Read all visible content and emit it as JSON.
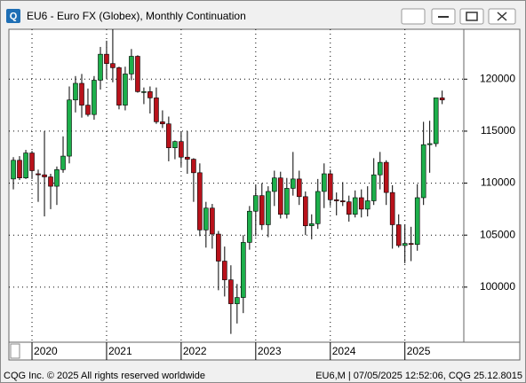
{
  "chart_data": {
    "type": "candlestick",
    "title": "EU6 - Euro FX (Globex), Monthly Continuation",
    "footer_left": "CQG Inc. © 2025 All rights reserved worldwide",
    "footer_right": "EU6,M | 07/05/2025 12:52:06, CQG 25.12.8015",
    "x": [
      2019.75,
      2019.833,
      2019.917,
      2020.0,
      2020.083,
      2020.167,
      2020.25,
      2020.333,
      2020.417,
      2020.5,
      2020.583,
      2020.667,
      2020.75,
      2020.833,
      2020.917,
      2021.0,
      2021.083,
      2021.167,
      2021.25,
      2021.333,
      2021.417,
      2021.5,
      2021.583,
      2021.667,
      2021.75,
      2021.833,
      2021.917,
      2022.0,
      2022.083,
      2022.167,
      2022.25,
      2022.333,
      2022.417,
      2022.5,
      2022.583,
      2022.667,
      2022.75,
      2022.833,
      2022.917,
      2023.0,
      2023.083,
      2023.167,
      2023.25,
      2023.333,
      2023.417,
      2023.5,
      2023.583,
      2023.667,
      2023.75,
      2023.833,
      2023.917,
      2024.0,
      2024.083,
      2024.167,
      2024.25,
      2024.333,
      2024.417,
      2024.5,
      2024.583,
      2024.667,
      2024.75,
      2024.833,
      2024.917,
      2025.0,
      2025.083,
      2025.167,
      2025.25,
      2025.333,
      2025.417,
      2025.5
    ],
    "open": [
      110400,
      112200,
      110500,
      112900,
      110900,
      110800,
      110600,
      109700,
      111300,
      112600,
      118000,
      119600,
      117500,
      116600,
      119900,
      122400,
      121500,
      121100,
      117500,
      120500,
      122200,
      118800,
      118800,
      118200,
      115900,
      115700,
      113400,
      114000,
      112500,
      112300,
      111000,
      105500,
      107600,
      105100,
      102500,
      100700,
      98400,
      99000,
      104300,
      107300,
      108800,
      106000,
      109200,
      110500,
      107000,
      109500,
      110400,
      108700,
      105900,
      106100,
      109200,
      110900,
      108400,
      108300,
      108200,
      107000,
      108600,
      107500,
      108300,
      110800,
      112000,
      109100,
      106000,
      104000,
      104200,
      104100,
      108600,
      113700,
      113800,
      118200
    ],
    "high": [
      112500,
      112600,
      113200,
      113100,
      111300,
      115000,
      110900,
      111600,
      114500,
      119300,
      120300,
      120500,
      119100,
      120300,
      123100,
      123700,
      124800,
      121200,
      121200,
      122900,
      122300,
      119200,
      119300,
      119200,
      117000,
      116400,
      114100,
      115000,
      115000,
      112400,
      111900,
      108200,
      108000,
      105400,
      103900,
      102100,
      100300,
      105000,
      107800,
      109800,
      110000,
      109700,
      111200,
      111100,
      110500,
      113000,
      111200,
      109200,
      107000,
      110400,
      111900,
      111300,
      109100,
      110100,
      108800,
      109300,
      109400,
      109700,
      112400,
      113000,
      112200,
      109800,
      107000,
      106000,
      105800,
      109900,
      115900,
      116000,
      118200,
      118900
    ],
    "low": [
      109400,
      110300,
      110400,
      110400,
      108200,
      106800,
      107500,
      107900,
      111000,
      111900,
      116800,
      116300,
      116400,
      116100,
      119000,
      120100,
      119700,
      117100,
      117000,
      119900,
      118700,
      117600,
      116700,
      115700,
      115300,
      112100,
      112300,
      111600,
      110900,
      108200,
      104900,
      103800,
      103700,
      99700,
      99100,
      95500,
      96500,
      97500,
      103600,
      104900,
      105500,
      104800,
      107800,
      106600,
      106600,
      108800,
      107900,
      105000,
      104600,
      105600,
      107600,
      107800,
      106900,
      107800,
      106300,
      106700,
      106700,
      106800,
      107900,
      109400,
      107900,
      103700,
      103800,
      102300,
      102500,
      103500,
      107900,
      111000,
      113500,
      117600
    ],
    "close": [
      112200,
      110500,
      112900,
      111200,
      110800,
      110600,
      109700,
      111300,
      112600,
      118000,
      119600,
      117500,
      116600,
      119900,
      122400,
      121500,
      121100,
      117500,
      120500,
      122200,
      118800,
      118800,
      118200,
      115900,
      115700,
      113400,
      114000,
      112500,
      112300,
      111000,
      105500,
      107600,
      105100,
      102500,
      100700,
      98400,
      99000,
      104300,
      107300,
      108800,
      106000,
      109200,
      110500,
      107000,
      109500,
      110400,
      108700,
      105900,
      106100,
      109200,
      110900,
      108400,
      108300,
      108200,
      107000,
      108600,
      107500,
      108300,
      110800,
      112000,
      109100,
      106000,
      104000,
      104200,
      104100,
      108600,
      113700,
      113800,
      118200,
      118000
    ],
    "up_color": "#1daf4b",
    "down_color": "#b8121b",
    "xlim": [
      2019.69,
      2025.79
    ],
    "xticks": [
      2020,
      2021,
      2022,
      2023,
      2024,
      2025
    ],
    "ylim": [
      94700,
      124800
    ],
    "yticks": [
      100000,
      105000,
      110000,
      115000,
      120000
    ],
    "grid": true
  }
}
